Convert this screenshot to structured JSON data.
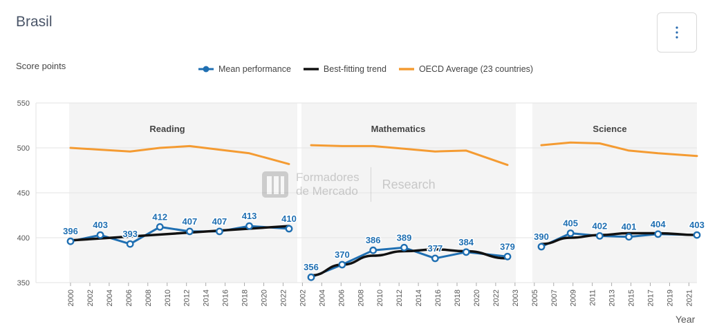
{
  "header": {
    "title": "Brasil",
    "y_axis_title": "Score points",
    "x_axis_title": "Year"
  },
  "legend": [
    {
      "label": "Mean performance",
      "color": "#1f6fb2",
      "icon": "line-dot-icon"
    },
    {
      "label": "Best-fitting trend",
      "color": "#111111",
      "icon": "line-icon"
    },
    {
      "label": "OECD Average (23 countries)",
      "color": "#f49b32",
      "icon": "line-icon"
    }
  ],
  "watermark": {
    "brand_line1": "Formadores",
    "brand_line2": "de Mercado",
    "tagline": "Research"
  },
  "menu_button": {
    "icon": "vertical-ellipsis-icon"
  },
  "chart_data": {
    "type": "line",
    "ylim": [
      350,
      550
    ],
    "yticks": [
      350,
      400,
      450,
      500,
      550
    ],
    "grid": true,
    "legend_position": "top",
    "panels": [
      {
        "title": "Reading",
        "x_ticks": [
          "2000",
          "2002",
          "2004",
          "2006",
          "2008",
          "2010",
          "2012",
          "2014",
          "2016",
          "2018",
          "2020",
          "2022"
        ],
        "x_ticks_extra": [
          "2002"
        ],
        "mean": {
          "x": [
            2000,
            2003,
            2006,
            2009,
            2012,
            2015,
            2018,
            2022
          ],
          "y": [
            396,
            403,
            393,
            412,
            407,
            407,
            413,
            410
          ]
        },
        "trend": {
          "x": [
            2000,
            2022
          ],
          "y": [
            397,
            413
          ]
        },
        "oecd": {
          "x": [
            2000,
            2003,
            2006,
            2009,
            2012,
            2015,
            2018,
            2022
          ],
          "y": [
            500,
            498,
            496,
            500,
            502,
            498,
            494,
            482
          ]
        }
      },
      {
        "title": "Mathematics",
        "x_ticks": [
          "2004",
          "2006",
          "2008",
          "2010",
          "2012",
          "2014",
          "2016",
          "2018",
          "2020",
          "2022",
          "2003"
        ],
        "mean": {
          "x": [
            2003,
            2006,
            2009,
            2012,
            2015,
            2018,
            2022
          ],
          "y": [
            356,
            370,
            386,
            389,
            377,
            384,
            379
          ]
        },
        "trend": {
          "x": [
            2003,
            2006,
            2009,
            2012,
            2015,
            2018,
            2022
          ],
          "y": [
            358,
            370,
            380,
            385,
            387,
            385,
            377
          ]
        },
        "oecd": {
          "x": [
            2003,
            2006,
            2009,
            2012,
            2015,
            2018,
            2022
          ],
          "y": [
            503,
            502,
            502,
            499,
            496,
            497,
            481
          ]
        }
      },
      {
        "title": "Science",
        "x_ticks": [
          "2005",
          "2007",
          "2009",
          "2011",
          "2013",
          "2015",
          "2017",
          "2019",
          "2021"
        ],
        "mean": {
          "x": [
            2006,
            2009,
            2012,
            2015,
            2018,
            2022
          ],
          "y": [
            390,
            405,
            402,
            401,
            404,
            403
          ]
        },
        "trend": {
          "x": [
            2006,
            2009,
            2012,
            2015,
            2018,
            2022
          ],
          "y": [
            393,
            400,
            403,
            405,
            405,
            403
          ]
        },
        "oecd": {
          "x": [
            2006,
            2009,
            2012,
            2015,
            2018,
            2022
          ],
          "y": [
            503,
            506,
            505,
            497,
            494,
            491
          ]
        }
      }
    ],
    "x_tick_labels": [
      "2000",
      "2002",
      "2004",
      "2006",
      "2008",
      "2010",
      "2012",
      "2014",
      "2016",
      "2018",
      "2020",
      "2022",
      "2002",
      "2004",
      "2006",
      "2008",
      "2010",
      "2012",
      "2014",
      "2016",
      "2018",
      "2020",
      "2022",
      "2003",
      "2005",
      "2007",
      "2009",
      "2011",
      "2013",
      "2015",
      "2017",
      "2019",
      "2021"
    ],
    "colors": {
      "mean": "#1f6fb2",
      "trend": "#111111",
      "oecd": "#f49b32",
      "panel_bg": "#f4f4f4"
    }
  }
}
